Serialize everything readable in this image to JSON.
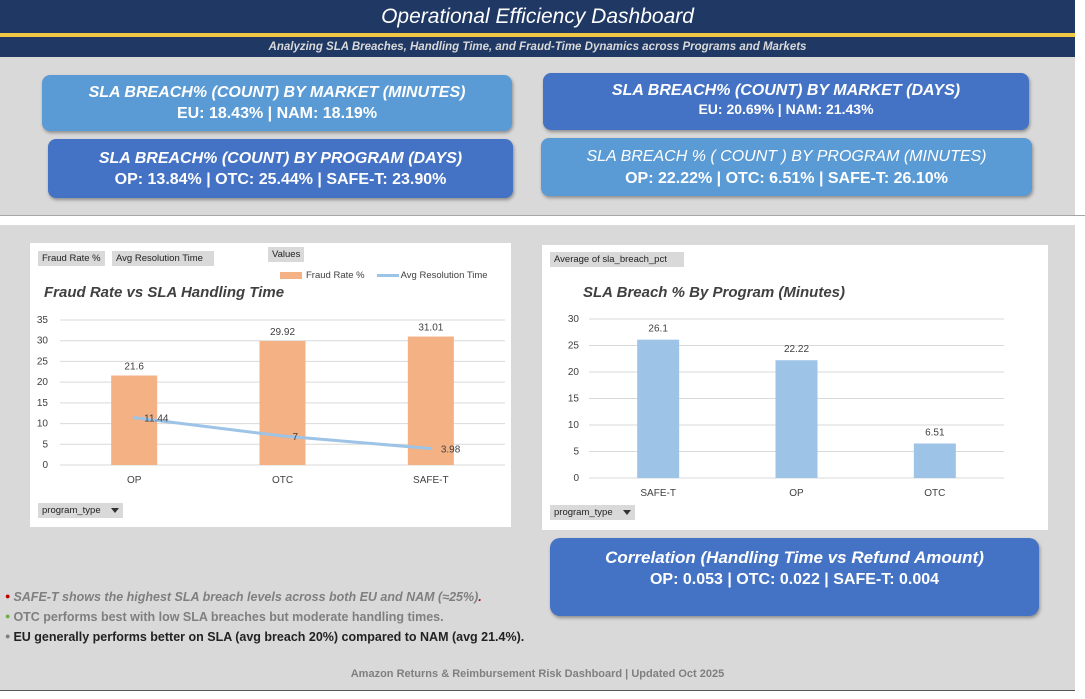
{
  "header": {
    "title": "Operational Efficiency Dashboard",
    "subtitle": "Analyzing SLA Breaches, Handling Time, and Fraud-Time Dynamics across Programs and Markets"
  },
  "kpis": {
    "market_minutes": {
      "title": "SLA BREACH% (COUNT) BY  MARKET (MINUTES)",
      "value": "EU: 18.43% | NAM: 18.19%"
    },
    "program_days": {
      "title": "SLA BREACH% (COUNT) BY  PROGRAM (DAYS)",
      "value": "OP: 13.84% | OTC: 25.44% | SAFE-T: 23.90%"
    },
    "market_days": {
      "title": "SLA BREACH% (COUNT) BY  MARKET (DAYS)",
      "value": "EU: 20.69% | NAM: 21.43%"
    },
    "program_minutes": {
      "title": "SLA BREACH % ( COUNT ) BY PROGRAM (MINUTES)",
      "value": "OP: 22.22% | OTC: 6.51% | SAFE-T: 26.10%"
    }
  },
  "left_chart": {
    "field_tags": [
      "Fraud Rate %",
      "Avg Resolution Time"
    ],
    "values_tag": "Values",
    "filter_label": "program_type",
    "legend": {
      "bar": "Fraud Rate %",
      "line": "Avg Resolution Time"
    }
  },
  "right_chart": {
    "field_tag": "Average of sla_breach_pct",
    "filter_label": "program_type"
  },
  "chart_data": [
    {
      "type": "bar",
      "title": "Fraud Rate vs SLA Handling Time",
      "categories": [
        "OP",
        "OTC",
        "SAFE-T"
      ],
      "series": [
        {
          "name": "Fraud Rate %",
          "type": "bar",
          "values": [
            21.6,
            29.92,
            31.01
          ],
          "color": "#f4b183"
        },
        {
          "name": "Avg Resolution Time",
          "type": "line",
          "values": [
            11.44,
            7,
            3.98
          ],
          "color": "#9dc3e6"
        }
      ],
      "ylim": [
        0,
        35
      ],
      "yticks": [
        0,
        5,
        10,
        15,
        20,
        25,
        30,
        35
      ],
      "grid": true,
      "legend": "top-right"
    },
    {
      "type": "bar",
      "title": "SLA Breach % By Program (Minutes)",
      "categories": [
        "SAFE-T",
        "OP",
        "OTC"
      ],
      "values": [
        26.1,
        22.22,
        6.51
      ],
      "color": "#9dc3e6",
      "ylim": [
        0,
        30
      ],
      "yticks": [
        0,
        5,
        10,
        15,
        20,
        25,
        30
      ],
      "grid": true
    }
  ],
  "correlation": {
    "title": "Correlation (Handling Time vs Refund Amount)",
    "value": "OP: 0.053 | OTC: 0.022 | SAFE-T: 0.004"
  },
  "notes": [
    {
      "text": "SAFE-T shows the highest SLA breach levels across both EU and NAM (≈25%)",
      "bullet_color": "#c00000",
      "trail": "."
    },
    {
      "text": "OTC performs best with low SLA breaches but moderate handling times.",
      "bullet_color": "#70ad47"
    },
    {
      "text": "EU generally performs better on SLA (avg breach 20%) compared to NAM (avg 21.4%).",
      "bullet_color": "#7f7f7f"
    }
  ],
  "footer": "Amazon Returns & Reimbursement Risk Dashboard | Updated Oct 2025"
}
